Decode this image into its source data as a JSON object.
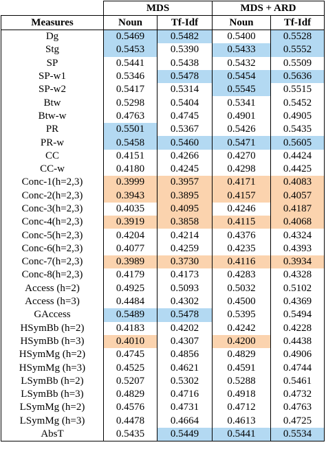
{
  "colors": {
    "best": "#b3d9f2",
    "worst": "#fbd3ae"
  },
  "header": {
    "group1": "MDS",
    "group2": "MDS + ARD",
    "measures": "Measures",
    "noun1": "Noun",
    "tfidf1": "Tf-Idf",
    "noun2": "Noun",
    "tfidf2": "Tf-Idf"
  },
  "rows": [
    {
      "m": "Dg",
      "v": [
        "0.5469",
        "0.5482",
        "0.5400",
        "0.5528"
      ],
      "h": [
        "b",
        "b",
        "",
        "b"
      ]
    },
    {
      "m": "Stg",
      "v": [
        "0.5453",
        "0.5390",
        "0.5433",
        "0.5552"
      ],
      "h": [
        "b",
        "",
        "b",
        "b"
      ]
    },
    {
      "m": "SP",
      "v": [
        "0.5441",
        "0.5438",
        "0.5432",
        "0.5509"
      ],
      "h": [
        "",
        "",
        "",
        ""
      ]
    },
    {
      "m": "SP-w1",
      "v": [
        "0.5346",
        "0.5478",
        "0.5454",
        "0.5636"
      ],
      "h": [
        "",
        "b",
        "b",
        "b"
      ]
    },
    {
      "m": "SP-w2",
      "v": [
        "0.5417",
        "0.5314",
        "0.5545",
        "0.5515"
      ],
      "h": [
        "",
        "",
        "b",
        ""
      ]
    },
    {
      "m": "Btw",
      "v": [
        "0.5298",
        "0.5404",
        "0.5341",
        "0.5452"
      ],
      "h": [
        "",
        "",
        "",
        ""
      ]
    },
    {
      "m": "Btw-w",
      "v": [
        "0.4763",
        "0.4745",
        "0.4901",
        "0.4905"
      ],
      "h": [
        "",
        "",
        "",
        ""
      ]
    },
    {
      "m": "PR",
      "v": [
        "0.5501",
        "0.5367",
        "0.5426",
        "0.5435"
      ],
      "h": [
        "b",
        "",
        "",
        ""
      ]
    },
    {
      "m": "PR-w",
      "v": [
        "0.5458",
        "0.5460",
        "0.5471",
        "0.5605"
      ],
      "h": [
        "b",
        "b",
        "b",
        "b"
      ]
    },
    {
      "m": "CC",
      "v": [
        "0.4151",
        "0.4266",
        "0.4270",
        "0.4424"
      ],
      "h": [
        "",
        "",
        "",
        ""
      ]
    },
    {
      "m": "CC-w",
      "v": [
        "0.4180",
        "0.4245",
        "0.4298",
        "0.4425"
      ],
      "h": [
        "",
        "",
        "",
        ""
      ]
    },
    {
      "m": "Conc-1(h=2,3)",
      "v": [
        "0.3999",
        "0.3957",
        "0.4171",
        "0.4083"
      ],
      "h": [
        "o",
        "o",
        "o",
        "o"
      ]
    },
    {
      "m": "Conc-2(h=2,3)",
      "v": [
        "0.3943",
        "0.3895",
        "0.4157",
        "0.4057"
      ],
      "h": [
        "o",
        "o",
        "o",
        "o"
      ]
    },
    {
      "m": "Conc-3(h=2,3)",
      "v": [
        "0.4035",
        "0.4095",
        "0.4246",
        "0.4187"
      ],
      "h": [
        "",
        "o",
        "",
        "o"
      ]
    },
    {
      "m": "Conc-4(h=2,3)",
      "v": [
        "0.3919",
        "0.3858",
        "0.4115",
        "0.4068"
      ],
      "h": [
        "o",
        "o",
        "o",
        "o"
      ]
    },
    {
      "m": "Conc-5(h=2,3)",
      "v": [
        "0.4204",
        "0.4214",
        "0.4376",
        "0.4324"
      ],
      "h": [
        "",
        "",
        "",
        ""
      ]
    },
    {
      "m": "Conc-6(h=2,3)",
      "v": [
        "0.4077",
        "0.4259",
        "0.4235",
        "0.4393"
      ],
      "h": [
        "",
        "",
        "",
        ""
      ]
    },
    {
      "m": "Conc-7(h=2,3)",
      "v": [
        "0.3989",
        "0.3730",
        "0.4116",
        "0.3934"
      ],
      "h": [
        "o",
        "o",
        "o",
        "o"
      ]
    },
    {
      "m": "Conc-8(h=2,3)",
      "v": [
        "0.4179",
        "0.4173",
        "0.4283",
        "0.4328"
      ],
      "h": [
        "",
        "",
        "",
        ""
      ]
    },
    {
      "m": "Access (h=2)",
      "v": [
        "0.4925",
        "0.5093",
        "0.5032",
        "0.5102"
      ],
      "h": [
        "",
        "",
        "",
        ""
      ]
    },
    {
      "m": "Access (h=3)",
      "v": [
        "0.4484",
        "0.4302",
        "0.4500",
        "0.4369"
      ],
      "h": [
        "",
        "",
        "",
        ""
      ]
    },
    {
      "m": "GAccess",
      "v": [
        "0.5489",
        "0.5478",
        "0.5395",
        "0.5494"
      ],
      "h": [
        "b",
        "b",
        "",
        ""
      ]
    },
    {
      "m": "HSymBb (h=2)",
      "v": [
        "0.4183",
        "0.4202",
        "0.4242",
        "0.4228"
      ],
      "h": [
        "",
        "",
        "",
        ""
      ]
    },
    {
      "m": "HSymBb (h=3)",
      "v": [
        "0.4010",
        "0.4307",
        "0.4200",
        "0.4438"
      ],
      "h": [
        "o",
        "",
        "o",
        ""
      ]
    },
    {
      "m": "HSymMg (h=2)",
      "v": [
        "0.4745",
        "0.4856",
        "0.4829",
        "0.4906"
      ],
      "h": [
        "",
        "",
        "",
        ""
      ]
    },
    {
      "m": "HSymMg (h=3)",
      "v": [
        "0.4525",
        "0.4621",
        "0.4591",
        "0.4744"
      ],
      "h": [
        "",
        "",
        "",
        ""
      ]
    },
    {
      "m": "LSymBb (h=2)",
      "v": [
        "0.5207",
        "0.5302",
        "0.5288",
        "0.5461"
      ],
      "h": [
        "",
        "",
        "",
        ""
      ]
    },
    {
      "m": "LSymBb (h=3)",
      "v": [
        "0.4829",
        "0.4716",
        "0.4918",
        "0.4732"
      ],
      "h": [
        "",
        "",
        "",
        ""
      ]
    },
    {
      "m": "LSymMg (h=2)",
      "v": [
        "0.4576",
        "0.4731",
        "0.4712",
        "0.4763"
      ],
      "h": [
        "",
        "",
        "",
        ""
      ]
    },
    {
      "m": "LSymMg (h=3)",
      "v": [
        "0.4478",
        "0.4664",
        "0.4613",
        "0.4725"
      ],
      "h": [
        "",
        "",
        "",
        ""
      ]
    },
    {
      "m": "AbsT",
      "v": [
        "0.5435",
        "0.5449",
        "0.5441",
        "0.5534"
      ],
      "h": [
        "",
        "b",
        "b",
        "b"
      ]
    }
  ]
}
